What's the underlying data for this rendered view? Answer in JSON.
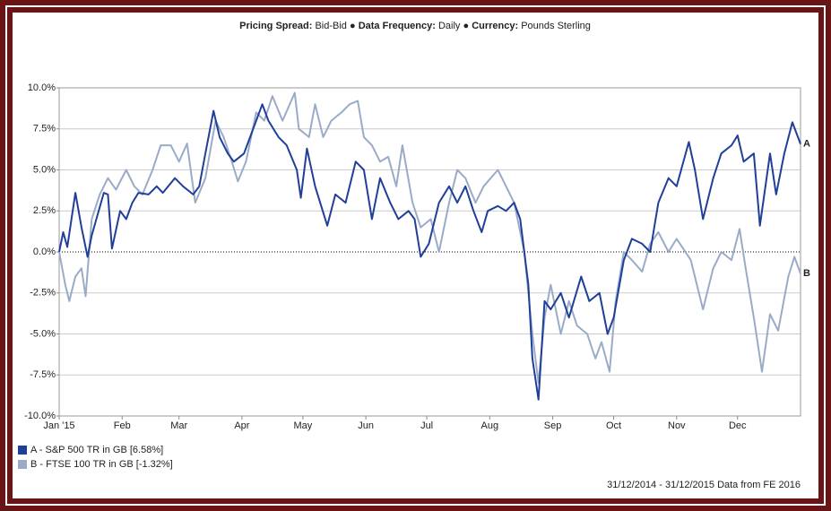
{
  "chart_data": {
    "type": "line",
    "header": [
      {
        "label": "Pricing Spread:",
        "text": "Bid-Bid"
      },
      {
        "label": "Data Frequency:",
        "text": "Daily"
      },
      {
        "label": "Currency:",
        "text": "Pounds Sterling"
      }
    ],
    "footer": "31/12/2014 - 31/12/2015 Data from FE 2016",
    "xlim": [
      0,
      365
    ],
    "xticks": [
      {
        "value": 0,
        "label": "Jan '15"
      },
      {
        "value": 31,
        "label": "Feb"
      },
      {
        "value": 59,
        "label": "Mar"
      },
      {
        "value": 90,
        "label": "Apr"
      },
      {
        "value": 120,
        "label": "May"
      },
      {
        "value": 151,
        "label": "Jun"
      },
      {
        "value": 181,
        "label": "Jul"
      },
      {
        "value": 212,
        "label": "Aug"
      },
      {
        "value": 243,
        "label": "Sep"
      },
      {
        "value": 273,
        "label": "Oct"
      },
      {
        "value": 304,
        "label": "Nov"
      },
      {
        "value": 334,
        "label": "Dec"
      }
    ],
    "ylim": [
      -10,
      10
    ],
    "yticks": [
      {
        "value": -10,
        "label": "-10.0%"
      },
      {
        "value": -7.5,
        "label": "-7.5%"
      },
      {
        "value": -5,
        "label": "-5.0%"
      },
      {
        "value": -2.5,
        "label": "-2.5%"
      },
      {
        "value": 0,
        "label": "0.0%"
      },
      {
        "value": 2.5,
        "label": "2.5%"
      },
      {
        "value": 5,
        "label": "5.0%"
      },
      {
        "value": 7.5,
        "label": "7.5%"
      },
      {
        "value": 10,
        "label": "10.0%"
      }
    ],
    "grid": true,
    "series": [
      {
        "name": "A - S&P 500 TR in GB [6.58%]",
        "end_label": "A",
        "color": "#1f3f99",
        "x": [
          0,
          2,
          4,
          8,
          11,
          14,
          16,
          22,
          24,
          26,
          30,
          33,
          36,
          39,
          44,
          48,
          51,
          57,
          61,
          66,
          69,
          72,
          76,
          79,
          83,
          86,
          91,
          94,
          100,
          103,
          108,
          112,
          117,
          119,
          122,
          126,
          132,
          136,
          141,
          146,
          150,
          154,
          158,
          163,
          167,
          172,
          175,
          178,
          182,
          187,
          192,
          196,
          200,
          204,
          208,
          211,
          216,
          220,
          224,
          227,
          231,
          233,
          236,
          239,
          242,
          247,
          251,
          257,
          261,
          266,
          270,
          273,
          278,
          282,
          287,
          291,
          295,
          300,
          304,
          310,
          313,
          317,
          322,
          326,
          331,
          334,
          337,
          342,
          345,
          350,
          353,
          357,
          361,
          365
        ],
        "values": [
          0,
          1.2,
          0.3,
          3.6,
          1.5,
          -0.3,
          1.0,
          3.6,
          3.5,
          0.2,
          2.5,
          2.0,
          3.0,
          3.6,
          3.5,
          4.0,
          3.6,
          4.5,
          4.0,
          3.5,
          4.0,
          6.0,
          8.6,
          7.0,
          6.0,
          5.5,
          6.0,
          7.0,
          9.0,
          8.0,
          7.0,
          6.5,
          5.0,
          3.3,
          6.3,
          4.0,
          1.6,
          3.5,
          3.0,
          5.5,
          5.0,
          2.0,
          4.5,
          3.0,
          2.0,
          2.5,
          2.0,
          -0.3,
          0.5,
          3.0,
          4.0,
          3.0,
          4.0,
          2.5,
          1.2,
          2.5,
          2.8,
          2.5,
          3.0,
          2.0,
          -2.0,
          -6.5,
          -9.0,
          -3.0,
          -3.5,
          -2.5,
          -4.0,
          -1.5,
          -3.0,
          -2.5,
          -5.0,
          -4.0,
          -0.5,
          0.8,
          0.5,
          0.0,
          3.0,
          4.5,
          4.0,
          6.7,
          5.0,
          2.0,
          4.5,
          6.0,
          6.5,
          7.1,
          5.5,
          6.0,
          1.6,
          6.0,
          3.5,
          6.0,
          7.9,
          6.58
        ]
      },
      {
        "name": "B - FTSE 100 TR in GB [-1.32%]",
        "end_label": "B",
        "color": "#9aabc8",
        "x": [
          0,
          3,
          5,
          8,
          11,
          13,
          16,
          20,
          24,
          28,
          33,
          37,
          41,
          46,
          50,
          55,
          59,
          63,
          67,
          72,
          77,
          81,
          85,
          88,
          92,
          97,
          101,
          105,
          110,
          116,
          118,
          123,
          126,
          130,
          134,
          139,
          143,
          147,
          150,
          154,
          158,
          162,
          166,
          169,
          174,
          178,
          183,
          187,
          192,
          196,
          200,
          205,
          209,
          216,
          220,
          224,
          229,
          233,
          236,
          239,
          242,
          247,
          251,
          255,
          260,
          264,
          267,
          271,
          274,
          278,
          282,
          287,
          291,
          295,
          300,
          304,
          311,
          317,
          322,
          326,
          331,
          335,
          338,
          342,
          346,
          350,
          354,
          359,
          362,
          365
        ],
        "values": [
          0,
          -2.0,
          -3.0,
          -1.5,
          -1.0,
          -2.7,
          2.0,
          3.5,
          4.5,
          3.8,
          5.0,
          4.0,
          3.5,
          5.0,
          6.5,
          6.5,
          5.5,
          6.6,
          3.0,
          4.5,
          8.0,
          7.0,
          5.5,
          4.3,
          5.5,
          8.5,
          8.0,
          9.5,
          8.0,
          9.7,
          7.5,
          7.0,
          9.0,
          7.0,
          8.0,
          8.5,
          9.0,
          9.2,
          7.0,
          6.5,
          5.5,
          5.8,
          4.0,
          6.5,
          3.0,
          1.5,
          2.0,
          0.0,
          3.0,
          5.0,
          4.5,
          3.0,
          4.0,
          5.0,
          4.0,
          3.0,
          0.0,
          -5.0,
          -8.0,
          -4.0,
          -2.0,
          -5.0,
          -3.0,
          -4.5,
          -5.0,
          -6.5,
          -5.5,
          -7.3,
          -3.0,
          0.0,
          -0.5,
          -1.2,
          0.5,
          1.2,
          0.0,
          0.8,
          -0.5,
          -3.5,
          -1.0,
          0.0,
          -0.5,
          1.4,
          -1.0,
          -4.0,
          -7.3,
          -3.8,
          -4.8,
          -1.5,
          -0.3,
          -1.32
        ]
      }
    ]
  }
}
